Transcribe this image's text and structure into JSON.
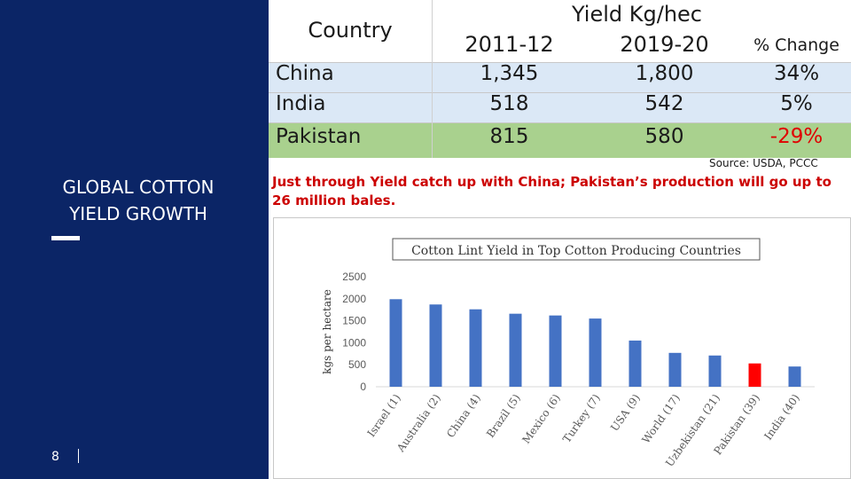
{
  "sidebar": {
    "title": "GLOBAL COTTON\nYIELD GROWTH",
    "page_number": "8",
    "background": "#0b2566"
  },
  "table": {
    "country_header": "Country",
    "yield_header": "Yield Kg/hec",
    "columns": [
      "2011-12",
      "2019-20",
      "% Change"
    ],
    "rows": [
      {
        "country": "China",
        "y2011": "1,345",
        "y2019": "1,800",
        "change": "34%"
      },
      {
        "country": "India",
        "y2011": "518",
        "y2019": "542",
        "change": "5%"
      },
      {
        "country": "Pakistan",
        "y2011": "815",
        "y2019": "580",
        "change": "-29%"
      }
    ],
    "row_colors": [
      "#dbe8f6",
      "#dbe8f6",
      "#a9d18e"
    ],
    "negative_color": "#e00000"
  },
  "source": "Source: USDA, PCCC",
  "note": "Just through Yield catch up with China; Pakistan’s production will go up to 26 million bales.",
  "chart_data": {
    "type": "bar",
    "title": "Cotton Lint Yield in Top Cotton Producing Countries",
    "ylabel": "kgs per hectare",
    "xlabel": "",
    "ylim": [
      0,
      2500
    ],
    "yticks": [
      0,
      500,
      1000,
      1500,
      2000,
      2500
    ],
    "grid": false,
    "categories": [
      "Israel (1)",
      "Australia (2)",
      "China (4)",
      "Brazil (5)",
      "Mexico (6)",
      "Turkey (7)",
      "USA (9)",
      "World (17)",
      "Uzbekistan (21)",
      "Pakistan (39)",
      "India (40)"
    ],
    "values": [
      1990,
      1870,
      1760,
      1660,
      1620,
      1550,
      1050,
      770,
      710,
      530,
      460
    ],
    "bar_color": "#4472c4",
    "highlight_index": 9,
    "highlight_color": "#ff0000"
  }
}
